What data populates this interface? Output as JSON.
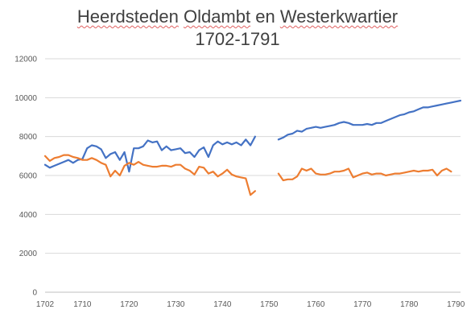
{
  "chart_data": {
    "type": "line",
    "title_line1_words": [
      "Heerdsteden",
      "Oldambt",
      "en",
      "Westerkwartier"
    ],
    "title_line2": "1702-1791",
    "xlabel": "",
    "ylabel": "",
    "xlim": [
      1702,
      1791
    ],
    "ylim": [
      0,
      12000
    ],
    "x_ticks": [
      "1702",
      "1710",
      "1720",
      "1730",
      "1740",
      "1750",
      "1760",
      "1770",
      "1780",
      "1790"
    ],
    "y_ticks": [
      "0",
      "2000",
      "4000",
      "6000",
      "8000",
      "10000",
      "12000"
    ],
    "grid": true,
    "legend": "none",
    "series": [
      {
        "color": "#4472C4",
        "points": [
          [
            1702,
            6550
          ],
          [
            1703,
            6400
          ],
          [
            1704,
            6500
          ],
          [
            1705,
            6600
          ],
          [
            1706,
            6700
          ],
          [
            1707,
            6800
          ],
          [
            1708,
            6650
          ],
          [
            1709,
            6800
          ],
          [
            1710,
            6850
          ],
          [
            1711,
            7400
          ],
          [
            1712,
            7550
          ],
          [
            1713,
            7500
          ],
          [
            1714,
            7350
          ],
          [
            1715,
            6900
          ],
          [
            1716,
            7100
          ],
          [
            1717,
            7200
          ],
          [
            1718,
            6800
          ],
          [
            1719,
            7200
          ],
          [
            1720,
            6200
          ],
          [
            1721,
            7400
          ],
          [
            1722,
            7400
          ],
          [
            1723,
            7500
          ],
          [
            1724,
            7800
          ],
          [
            1725,
            7700
          ],
          [
            1726,
            7750
          ],
          [
            1727,
            7300
          ],
          [
            1728,
            7500
          ],
          [
            1729,
            7300
          ],
          [
            1730,
            7350
          ],
          [
            1731,
            7400
          ],
          [
            1732,
            7150
          ],
          [
            1733,
            7200
          ],
          [
            1734,
            6950
          ],
          [
            1735,
            7300
          ],
          [
            1736,
            7450
          ],
          [
            1737,
            6950
          ],
          [
            1738,
            7550
          ],
          [
            1739,
            7750
          ],
          [
            1740,
            7600
          ],
          [
            1741,
            7700
          ],
          [
            1742,
            7600
          ],
          [
            1743,
            7700
          ],
          [
            1744,
            7550
          ],
          [
            1745,
            7850
          ],
          [
            1746,
            7550
          ],
          [
            1747,
            8000
          ],
          null,
          [
            1752,
            7850
          ],
          [
            1753,
            7950
          ],
          [
            1754,
            8100
          ],
          [
            1755,
            8150
          ],
          [
            1756,
            8300
          ],
          [
            1757,
            8250
          ],
          [
            1758,
            8400
          ],
          [
            1759,
            8450
          ],
          [
            1760,
            8500
          ],
          [
            1761,
            8450
          ],
          [
            1762,
            8500
          ],
          [
            1763,
            8550
          ],
          [
            1764,
            8600
          ],
          [
            1765,
            8700
          ],
          [
            1766,
            8750
          ],
          [
            1767,
            8700
          ],
          [
            1768,
            8600
          ],
          [
            1769,
            8600
          ],
          [
            1770,
            8600
          ],
          [
            1771,
            8650
          ],
          [
            1772,
            8600
          ],
          [
            1773,
            8700
          ],
          [
            1774,
            8700
          ],
          [
            1775,
            8800
          ],
          [
            1776,
            8900
          ],
          [
            1777,
            9000
          ],
          [
            1778,
            9100
          ],
          [
            1779,
            9150
          ],
          [
            1780,
            9250
          ],
          [
            1781,
            9300
          ],
          [
            1782,
            9400
          ],
          [
            1783,
            9500
          ],
          [
            1784,
            9500
          ],
          [
            1785,
            9550
          ],
          [
            1786,
            9600
          ],
          [
            1787,
            9650
          ],
          [
            1788,
            9700
          ],
          [
            1789,
            9750
          ],
          [
            1790,
            9800
          ],
          [
            1791,
            9850
          ]
        ]
      },
      {
        "color": "#ED7D31",
        "points": [
          [
            1702,
            7000
          ],
          [
            1703,
            6750
          ],
          [
            1704,
            6900
          ],
          [
            1705,
            6950
          ],
          [
            1706,
            7050
          ],
          [
            1707,
            7050
          ],
          [
            1708,
            6950
          ],
          [
            1709,
            6900
          ],
          [
            1710,
            6800
          ],
          [
            1711,
            6800
          ],
          [
            1712,
            6900
          ],
          [
            1713,
            6800
          ],
          [
            1714,
            6650
          ],
          [
            1715,
            6550
          ],
          [
            1716,
            5950
          ],
          [
            1717,
            6250
          ],
          [
            1718,
            6000
          ],
          [
            1719,
            6500
          ],
          [
            1720,
            6650
          ],
          [
            1721,
            6550
          ],
          [
            1722,
            6700
          ],
          [
            1723,
            6550
          ],
          [
            1724,
            6500
          ],
          [
            1725,
            6450
          ],
          [
            1726,
            6450
          ],
          [
            1727,
            6500
          ],
          [
            1728,
            6500
          ],
          [
            1729,
            6450
          ],
          [
            1730,
            6550
          ],
          [
            1731,
            6550
          ],
          [
            1732,
            6350
          ],
          [
            1733,
            6250
          ],
          [
            1734,
            6050
          ],
          [
            1735,
            6450
          ],
          [
            1736,
            6400
          ],
          [
            1737,
            6100
          ],
          [
            1738,
            6200
          ],
          [
            1739,
            5950
          ],
          [
            1740,
            6100
          ],
          [
            1741,
            6300
          ],
          [
            1742,
            6050
          ],
          [
            1743,
            5950
          ],
          [
            1744,
            5900
          ],
          [
            1745,
            5850
          ],
          [
            1746,
            5000
          ],
          [
            1747,
            5200
          ],
          null,
          [
            1752,
            6100
          ],
          [
            1753,
            5750
          ],
          [
            1754,
            5800
          ],
          [
            1755,
            5800
          ],
          [
            1756,
            5950
          ],
          [
            1757,
            6350
          ],
          [
            1758,
            6250
          ],
          [
            1759,
            6350
          ],
          [
            1760,
            6100
          ],
          [
            1761,
            6050
          ],
          [
            1762,
            6050
          ],
          [
            1763,
            6100
          ],
          [
            1764,
            6200
          ],
          [
            1765,
            6200
          ],
          [
            1766,
            6250
          ],
          [
            1767,
            6350
          ],
          [
            1768,
            5900
          ],
          [
            1769,
            6000
          ],
          [
            1770,
            6100
          ],
          [
            1771,
            6150
          ],
          [
            1772,
            6050
          ],
          [
            1773,
            6100
          ],
          [
            1774,
            6100
          ],
          [
            1775,
            6000
          ],
          [
            1776,
            6050
          ],
          [
            1777,
            6100
          ],
          [
            1778,
            6100
          ],
          [
            1779,
            6150
          ],
          [
            1780,
            6200
          ],
          [
            1781,
            6250
          ],
          [
            1782,
            6200
          ],
          [
            1783,
            6250
          ],
          [
            1784,
            6250
          ],
          [
            1785,
            6300
          ],
          [
            1786,
            6000
          ],
          [
            1787,
            6250
          ],
          [
            1788,
            6350
          ],
          [
            1789,
            6200
          ]
        ]
      }
    ]
  }
}
